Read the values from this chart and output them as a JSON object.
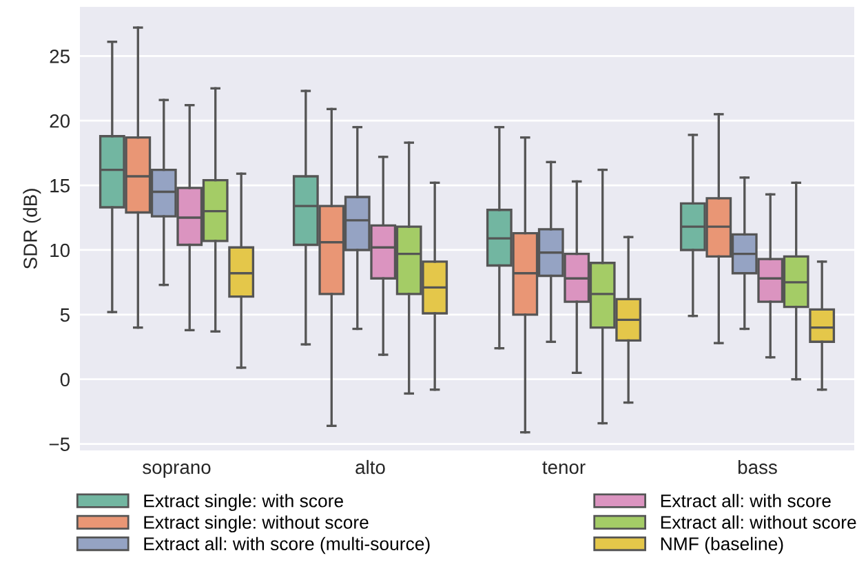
{
  "chart_data": {
    "type": "box",
    "ylabel": "SDR (dB)",
    "categories": [
      "soprano",
      "alto",
      "tenor",
      "bass"
    ],
    "ylim": [
      -5.5,
      28.8
    ],
    "yticks": [
      {
        "value": -5,
        "label": "−5"
      },
      0,
      5,
      10,
      15,
      20,
      25
    ],
    "grid": "y",
    "legend": "bottom",
    "series": [
      {
        "name": "Extract single: with score",
        "color": "#72b6a1",
        "boxes": [
          {
            "low": 5.2,
            "q1": 13.3,
            "median": 16.2,
            "q3": 18.8,
            "high": 26.1
          },
          {
            "low": 2.7,
            "q1": 10.4,
            "median": 13.4,
            "q3": 15.7,
            "high": 22.3
          },
          {
            "low": 2.4,
            "q1": 8.8,
            "median": 10.9,
            "q3": 13.1,
            "high": 19.5
          },
          {
            "low": 4.9,
            "q1": 10.0,
            "median": 11.8,
            "q3": 13.6,
            "high": 18.9
          }
        ]
      },
      {
        "name": "Extract single: without score",
        "color": "#e99675",
        "boxes": [
          {
            "low": 4.0,
            "q1": 12.9,
            "median": 15.7,
            "q3": 18.7,
            "high": 27.2
          },
          {
            "low": -3.6,
            "q1": 6.6,
            "median": 10.6,
            "q3": 13.4,
            "high": 20.9
          },
          {
            "low": -4.1,
            "q1": 5.0,
            "median": 8.2,
            "q3": 11.3,
            "high": 18.7
          },
          {
            "low": 2.8,
            "q1": 9.5,
            "median": 11.8,
            "q3": 14.0,
            "high": 20.5
          }
        ]
      },
      {
        "name": "Extract all: with score (multi-source)",
        "color": "#95a3c3",
        "boxes": [
          {
            "low": 7.3,
            "q1": 12.6,
            "median": 14.5,
            "q3": 16.2,
            "high": 21.6
          },
          {
            "low": 3.9,
            "q1": 10.0,
            "median": 12.3,
            "q3": 14.1,
            "high": 19.5
          },
          {
            "low": 2.9,
            "q1": 8.0,
            "median": 9.8,
            "q3": 11.6,
            "high": 16.8
          },
          {
            "low": 3.9,
            "q1": 8.2,
            "median": 9.7,
            "q3": 11.2,
            "high": 15.6
          }
        ]
      },
      {
        "name": "Extract all: with score",
        "color": "#db94c0",
        "boxes": [
          {
            "low": 3.8,
            "q1": 10.4,
            "median": 12.5,
            "q3": 14.8,
            "high": 21.2
          },
          {
            "low": 1.9,
            "q1": 7.8,
            "median": 10.2,
            "q3": 11.9,
            "high": 17.2
          },
          {
            "low": 0.5,
            "q1": 6.0,
            "median": 7.8,
            "q3": 9.7,
            "high": 15.3
          },
          {
            "low": 1.7,
            "q1": 6.0,
            "median": 7.8,
            "q3": 9.3,
            "high": 14.3
          }
        ]
      },
      {
        "name": "Extract all: without score",
        "color": "#a4cc66",
        "boxes": [
          {
            "low": 3.7,
            "q1": 10.7,
            "median": 13.0,
            "q3": 15.4,
            "high": 22.5
          },
          {
            "low": -1.1,
            "q1": 6.6,
            "median": 9.7,
            "q3": 11.8,
            "high": 18.3
          },
          {
            "low": -3.4,
            "q1": 4.0,
            "median": 6.6,
            "q3": 9.0,
            "high": 16.2
          },
          {
            "low": 0.0,
            "q1": 5.6,
            "median": 7.5,
            "q3": 9.5,
            "high": 15.2
          }
        ]
      },
      {
        "name": "NMF (baseline)",
        "color": "#e4c74a",
        "boxes": [
          {
            "low": 0.9,
            "q1": 6.4,
            "median": 8.2,
            "q3": 10.2,
            "high": 15.9
          },
          {
            "low": -0.8,
            "q1": 5.1,
            "median": 7.1,
            "q3": 9.1,
            "high": 15.2
          },
          {
            "low": -1.8,
            "q1": 3.0,
            "median": 4.6,
            "q3": 6.2,
            "high": 11.0
          },
          {
            "low": -0.8,
            "q1": 2.9,
            "median": 4.0,
            "q3": 5.4,
            "high": 9.1
          }
        ]
      }
    ]
  }
}
